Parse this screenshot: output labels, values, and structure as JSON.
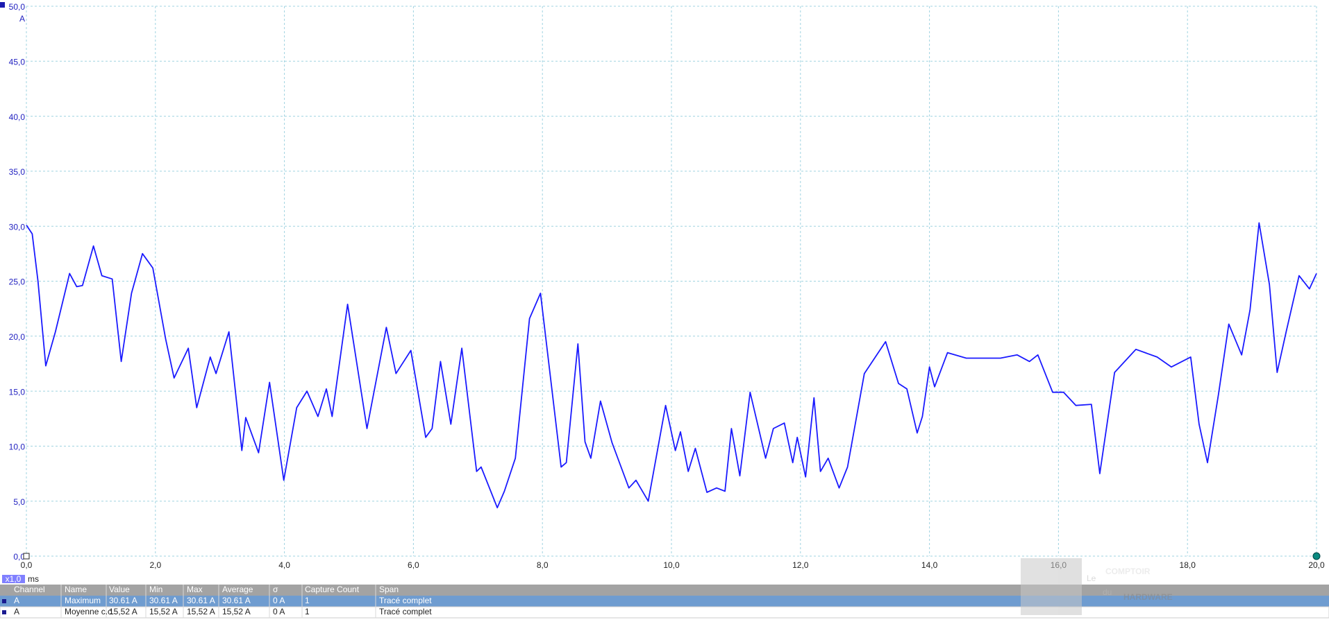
{
  "chart_data": {
    "type": "line",
    "x_unit": "ms",
    "y_unit": "A",
    "zoom": "x1,0",
    "x": [
      0,
      0.09,
      0.18,
      0.3,
      0.45,
      0.67,
      0.78,
      0.87,
      1.04,
      1.17,
      1.33,
      1.47,
      1.63,
      1.8,
      1.96,
      2.16,
      2.29,
      2.51,
      2.64,
      2.85,
      2.94,
      3.14,
      3.34,
      3.4,
      3.6,
      3.77,
      3.99,
      4.19,
      4.35,
      4.52,
      4.65,
      4.74,
      4.98,
      5.28,
      5.58,
      5.73,
      5.96,
      6.19,
      6.29,
      6.42,
      6.58,
      6.75,
      6.98,
      7.05,
      7.3,
      7.41,
      7.58,
      7.8,
      7.97,
      8.29,
      8.37,
      8.55,
      8.66,
      8.75,
      8.9,
      9.08,
      9.34,
      9.45,
      9.64,
      9.91,
      10.06,
      10.14,
      10.26,
      10.37,
      10.55,
      10.7,
      10.83,
      10.93,
      11.06,
      11.22,
      11.46,
      11.58,
      11.75,
      11.88,
      11.95,
      12.08,
      12.21,
      12.31,
      12.43,
      12.6,
      12.73,
      12.99,
      13.32,
      13.52,
      13.65,
      13.81,
      13.89,
      14.0,
      14.08,
      14.28,
      14.57,
      15.1,
      15.36,
      15.55,
      15.68,
      15.91,
      16.08,
      16.27,
      16.51,
      16.64,
      16.87,
      17.2,
      17.53,
      17.75,
      18.05,
      18.18,
      18.31,
      18.48,
      18.64,
      18.84,
      18.97,
      19.11,
      19.27,
      19.39,
      19.53,
      19.73,
      19.89,
      20.0
    ],
    "series": [
      {
        "color": "#1a1aff",
        "values": [
          30.1,
          29.3,
          25,
          17.3,
          20.4,
          25.7,
          24.5,
          24.6,
          28.2,
          25.5,
          25.2,
          17.7,
          23.9,
          27.5,
          26.2,
          19.7,
          16.2,
          18.9,
          13.5,
          18.1,
          16.6,
          20.4,
          9.6,
          12.6,
          9.4,
          15.8,
          6.9,
          13.5,
          15.0,
          12.7,
          15.2,
          12.7,
          22.9,
          11.6,
          20.8,
          16.6,
          18.7,
          10.8,
          11.6,
          17.7,
          12.0,
          18.9,
          7.7,
          8.1,
          4.4,
          5.9,
          8.9,
          21.6,
          23.9,
          8.1,
          8.5,
          19.3,
          10.4,
          8.9,
          14.1,
          10.3,
          6.2,
          6.9,
          5.0,
          13.7,
          9.6,
          11.3,
          7.7,
          9.8,
          5.8,
          6.2,
          5.9,
          11.6,
          7.3,
          14.9,
          8.9,
          11.6,
          12.1,
          8.5,
          10.8,
          7.2,
          14.4,
          7.7,
          8.9,
          6.2,
          8.1,
          16.6,
          19.5,
          15.7,
          15.2,
          11.2,
          12.7,
          17.2,
          15.4,
          18.5,
          18.0,
          18.0,
          18.3,
          17.7,
          18.3,
          14.9,
          14.9,
          13.7,
          13.8,
          7.5,
          16.7,
          18.8,
          18.1,
          17.2,
          18.1,
          12.0,
          8.5,
          14.7,
          21.1,
          18.3,
          22.4,
          30.3,
          24.7,
          16.7,
          20.4,
          25.5,
          24.3,
          25.7
        ]
      }
    ],
    "xlim": [
      0,
      20
    ],
    "ylim": [
      0,
      50
    ],
    "xticks": [
      {
        "value": 0,
        "label": "0,0"
      },
      {
        "value": 2,
        "label": "2,0"
      },
      {
        "value": 4,
        "label": "4,0"
      },
      {
        "value": 6,
        "label": "6,0"
      },
      {
        "value": 8,
        "label": "8,0"
      },
      {
        "value": 10,
        "label": "10,0"
      },
      {
        "value": 12,
        "label": "12,0"
      },
      {
        "value": 14,
        "label": "14,0"
      },
      {
        "value": 16,
        "label": "16,0"
      },
      {
        "value": 18,
        "label": "18,0"
      },
      {
        "value": 20,
        "label": "20,0"
      }
    ],
    "yticks": [
      {
        "value": 0,
        "label": "0,0"
      },
      {
        "value": 5,
        "label": "5,0"
      },
      {
        "value": 10,
        "label": "10,0"
      },
      {
        "value": 15,
        "label": "15,0"
      },
      {
        "value": 20,
        "label": "20,0"
      },
      {
        "value": 25,
        "label": "25,0"
      },
      {
        "value": 30,
        "label": "30,0"
      },
      {
        "value": 35,
        "label": "35,0"
      },
      {
        "value": 40,
        "label": "40,0"
      },
      {
        "value": 45,
        "label": "45,0"
      },
      {
        "value": 50,
        "label": "50,0"
      }
    ],
    "grid": true
  },
  "measurements": {
    "columns": [
      "Channel",
      "Name",
      "Value",
      "Min",
      "Max",
      "Average",
      "σ",
      "Capture Count",
      "Span"
    ],
    "rows": [
      [
        "A",
        "Maximum",
        "30.61 A",
        "30.61 A",
        "30.61 A",
        "30.61 A",
        "0 A",
        "1",
        "Tracé complet"
      ],
      [
        "A",
        "Moyenne c.c.",
        "15,52 A",
        "15,52 A",
        "15,52 A",
        "15,52 A",
        "0 A",
        "1",
        "Tracé complet"
      ]
    ]
  },
  "watermark": {
    "le": "Le",
    "comptoir": "COMPTOIR",
    "du": "du",
    "hardware": "HARDWARE"
  }
}
